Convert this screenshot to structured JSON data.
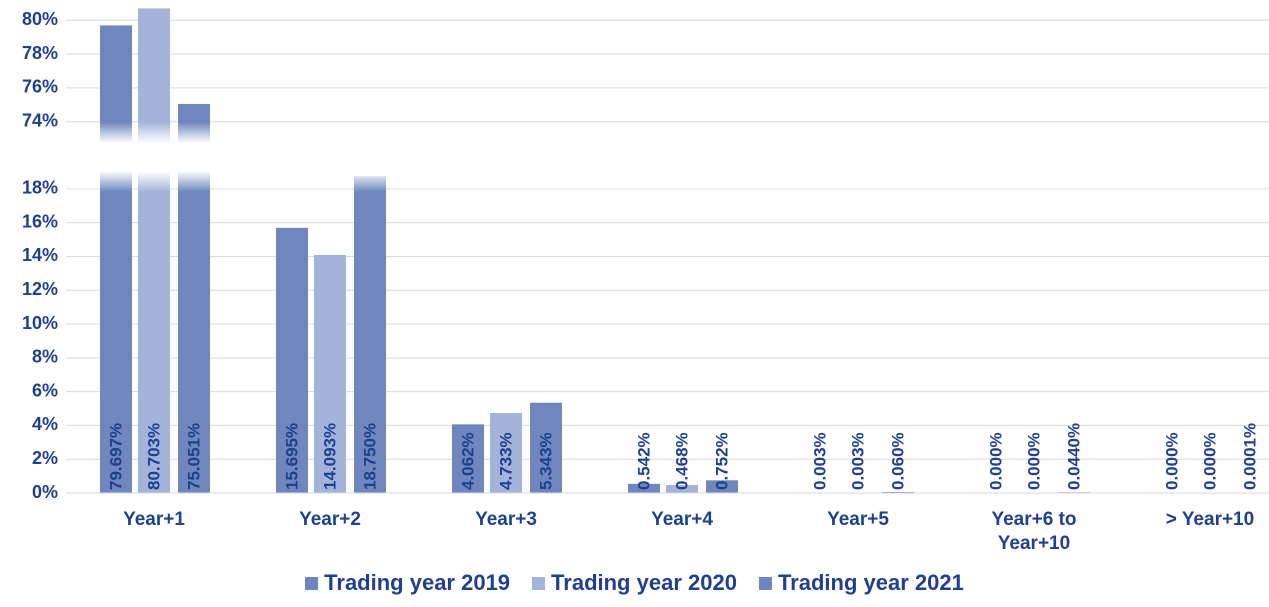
{
  "chart_data": {
    "type": "bar",
    "categories": [
      "Year+1",
      "Year+2",
      "Year+3",
      "Year+4",
      "Year+5",
      "Year+6 to Year+10",
      "> Year+10"
    ],
    "series": [
      {
        "name": "Trading year 2019",
        "color": "#6f86bf",
        "values": [
          79.697,
          15.695,
          4.062,
          0.542,
          0.003,
          0.0,
          0.0
        ],
        "value_labels": [
          "79.697%",
          "15.695%",
          "4.062%",
          "0.542%",
          "0.003%",
          "0.000%",
          "0.000%"
        ]
      },
      {
        "name": "Trading year 2020",
        "color": "#a3b3da",
        "values": [
          80.703,
          14.093,
          4.733,
          0.468,
          0.003,
          0.0,
          0.0
        ],
        "value_labels": [
          "80.703%",
          "14.093%",
          "4.733%",
          "0.468%",
          "0.003%",
          "0.000%",
          "0.000%"
        ]
      },
      {
        "name": "Trading year 2021",
        "color": "#6f86bf",
        "values": [
          75.051,
          18.75,
          5.343,
          0.752,
          0.06,
          0.044,
          0.0001
        ],
        "value_labels": [
          "75.051%",
          "18.750%",
          "5.343%",
          "0.752%",
          "0.060%",
          "0.0440%",
          "0.0001%"
        ]
      }
    ],
    "ylim": [
      0,
      19
    ],
    "yticks": [
      {
        "value": 0,
        "label": "0%"
      },
      {
        "value": 2,
        "label": "2%"
      },
      {
        "value": 4,
        "label": "4%"
      },
      {
        "value": 6,
        "label": "6%"
      },
      {
        "value": 8,
        "label": "8%"
      },
      {
        "value": 10,
        "label": "10%"
      },
      {
        "value": 12,
        "label": "12%"
      },
      {
        "value": 14,
        "label": "14%"
      },
      {
        "value": 16,
        "label": "16%"
      },
      {
        "value": 18,
        "label": "18%"
      }
    ],
    "ylim_upper": [
      72.8,
      81.2
    ],
    "yticks_upper": [
      {
        "value": 74,
        "label": "74%"
      },
      {
        "value": 76,
        "label": "76%"
      },
      {
        "value": 78,
        "label": "78%"
      },
      {
        "value": 80,
        "label": "80%"
      }
    ],
    "grid": true,
    "legend": "bottom"
  }
}
